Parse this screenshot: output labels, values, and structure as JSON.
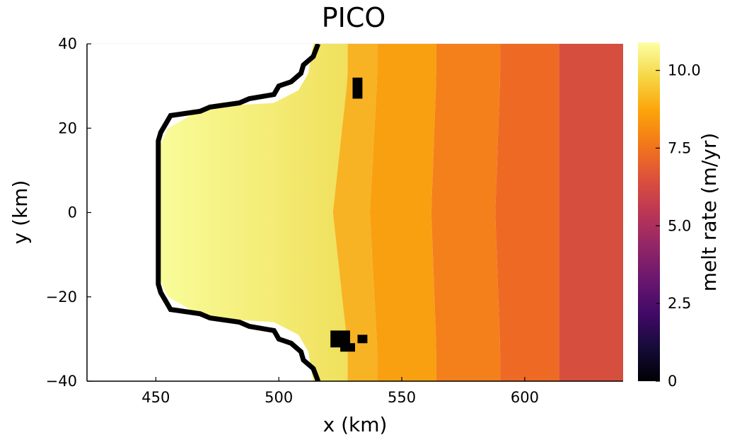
{
  "chart_data": {
    "type": "heatmap",
    "title": "PICO",
    "xlabel": "x (km)",
    "ylabel": "y (km)",
    "xlim": [
      422,
      640
    ],
    "ylim": [
      -40,
      40
    ],
    "x_ticks": [
      450,
      500,
      550,
      600
    ],
    "x_tick_labels": [
      "450",
      "500",
      "550",
      "600"
    ],
    "y_ticks": [
      40,
      20,
      0,
      -20,
      -40
    ],
    "y_tick_labels": [
      "40",
      "20",
      "0",
      "−20",
      "−40"
    ],
    "grid": true,
    "colormap": "inferno",
    "colorbar": {
      "label": "melt rate (m/yr)",
      "range": [
        0,
        10.9
      ],
      "ticks": [
        0,
        2.5,
        5,
        7.5,
        10
      ],
      "tick_labels": [
        "0",
        "2.5",
        "5.0",
        "7.5",
        "10.0"
      ]
    },
    "ice_front_color": "#000000",
    "boxes": [
      {
        "box": 1,
        "melt_rate": 10.6,
        "x_start": 450,
        "x_end": 528,
        "color_left": "#f9fd9b",
        "color_right": "#f0e05c"
      },
      {
        "box": 2,
        "melt_rate": 9.0,
        "x_start": 528,
        "x_end": 540,
        "color": "#f7b324"
      },
      {
        "box": 3,
        "melt_rate": 8.7,
        "x_start": 540,
        "x_end": 564,
        "color": "#f9a011"
      },
      {
        "box": 4,
        "melt_rate": 7.9,
        "x_start": 564,
        "x_end": 590,
        "color": "#f4801c"
      },
      {
        "box": 5,
        "melt_rate": 7.2,
        "x_start": 590,
        "x_end": 614,
        "color": "#ee6a24"
      },
      {
        "box": 6,
        "melt_rate": 6.6,
        "x_start": 614,
        "x_end": 640,
        "color": "#d64e3e"
      }
    ]
  }
}
